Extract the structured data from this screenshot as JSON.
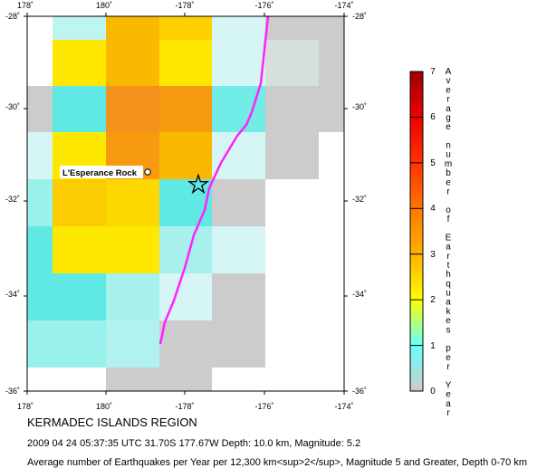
{
  "map": {
    "lon_ticks": [
      "178˚",
      "180˚",
      "-178˚",
      "-176˚",
      "-174˚"
    ],
    "lat_ticks_left": [
      "-28˚",
      "-30˚",
      "-32˚",
      "-34˚",
      "-36˚"
    ],
    "lat_ticks_right": [
      "-28˚",
      "-30˚",
      "-32˚",
      "-34˚",
      "-36˚"
    ],
    "grid_colors": [
      [
        "#ffffff",
        "#bff5f0",
        "#fab800",
        "#ffd000",
        "#d6f5f5",
        "#cccccc"
      ],
      [
        "#ffffff",
        "#ffe800",
        "#fbb800",
        "#ffe800",
        "#d6f5f5",
        "#d6dede"
      ],
      [
        "#cccccc",
        "#60e8e4",
        "#f5921e",
        "#f79a10",
        "#70ebe6",
        "#cccccc"
      ],
      [
        "#d6f5f5",
        "#ffe800",
        "#f79a10",
        "#fbb800",
        "#d6f5f5",
        "#cccccc"
      ],
      [
        "#9af0ea",
        "#fbcc00",
        "#fdd800",
        "#60e8e4",
        "#cccccc",
        "#ffffff"
      ],
      [
        "#60e8e4",
        "#ffe800",
        "#ffe800",
        "#a8f0ec",
        "#d6f5f5",
        "#ffffff"
      ],
      [
        "#60e8e4",
        "#60e8e4",
        "#a8f0ec",
        "#d6f5f5",
        "#cccccc",
        "#ffffff"
      ],
      [
        "#9af0ea",
        "#9af0ea",
        "#b2f2ee",
        "#cccccc",
        "#cccccc",
        "#ffffff"
      ],
      [
        "#ffffff",
        "#ffffff",
        "#cccccc",
        "#cccccc",
        "#ffffff",
        "#ffffff"
      ]
    ],
    "place_label": "L'Esperance Rock",
    "plate_boundary_color": "#ff22ff",
    "epicenter_marker": "star-icon"
  },
  "colorbar": {
    "ticks": [
      "0",
      "1",
      "2",
      "3",
      "4",
      "5",
      "6",
      "7"
    ],
    "stops": [
      "#cccccc",
      "#66ffff",
      "#ffff00",
      "#ffb000",
      "#ff7800",
      "#ff3200",
      "#ee0000",
      "#a00000"
    ],
    "label_letters": [
      "A",
      "v",
      "e",
      "r",
      "a",
      "g",
      "e",
      "",
      "n",
      "u",
      "m",
      "b",
      "e",
      "r",
      "",
      "o",
      "f",
      "",
      "E",
      "a",
      "r",
      "t",
      "h",
      "q",
      "u",
      "a",
      "k",
      "e",
      "s",
      "",
      "p",
      "e",
      "r",
      "",
      "Y",
      "e",
      "a",
      "r"
    ],
    "label": "Average number of Earthquakes per Year"
  },
  "caption": {
    "region": "KERMADEC ISLANDS REGION",
    "event": "2009 04 24 05:37:35 UTC 31.70S 177.67W Depth: 10.0 km, Magnitude: 5.2",
    "description": "Average number of Earthquakes per Year per 12,300 km<sup>2</sup>, Magnitude 5 and Greater, Depth 0-70 km"
  }
}
